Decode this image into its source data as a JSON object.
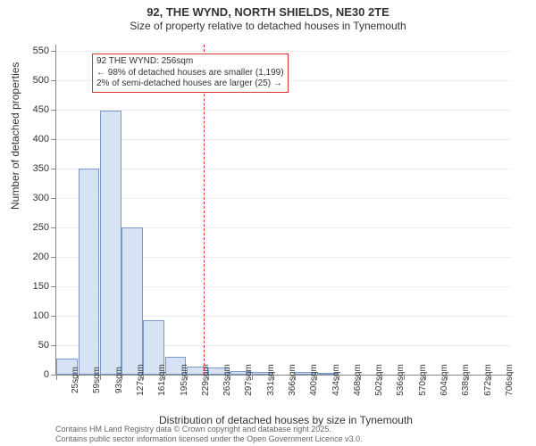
{
  "title": "92, THE WYND, NORTH SHIELDS, NE30 2TE",
  "subtitle": "Size of property relative to detached houses in Tynemouth",
  "ylabel": "Number of detached properties",
  "xlabel": "Distribution of detached houses by size in Tynemouth",
  "credits_line1": "Contains HM Land Registry data © Crown copyright and database right 2025.",
  "credits_line2": "Contains public sector information licensed under the Open Government Licence v3.0.",
  "chart": {
    "type": "histogram",
    "background_color": "#ffffff",
    "grid_color": "#eeeeee",
    "axis_color": "#888888",
    "bar_fill": "#d7e3f4",
    "bar_stroke": "#7a9ac9",
    "ylim_min": 0,
    "ylim_max": 560,
    "ytick_step": 50,
    "xcategories": [
      "25sqm",
      "59sqm",
      "93sqm",
      "127sqm",
      "161sqm",
      "195sqm",
      "229sqm",
      "263sqm",
      "297sqm",
      "331sqm",
      "366sqm",
      "400sqm",
      "434sqm",
      "468sqm",
      "502sqm",
      "536sqm",
      "570sqm",
      "604sqm",
      "638sqm",
      "672sqm",
      "706sqm"
    ],
    "values": [
      27,
      350,
      448,
      250,
      93,
      30,
      14,
      12,
      6,
      4,
      0,
      5,
      3,
      0,
      0,
      0,
      0,
      0,
      0,
      0,
      0
    ],
    "reference_value_sqm": 256,
    "reference_line_color": "#d33",
    "annotation": {
      "border_color": "#d33",
      "lines": [
        "92 THE WYND: 256sqm",
        "← 98% of detached houses are smaller (1,199)",
        "2% of semi-detached houses are larger (25) →"
      ]
    }
  }
}
